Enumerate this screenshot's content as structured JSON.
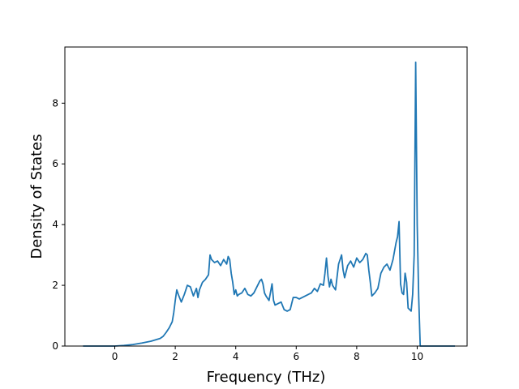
{
  "chart_data": {
    "type": "line",
    "title": "",
    "xlabel": "Frequency (THz)",
    "ylabel": "Density of States",
    "xlim": [
      -1.65,
      11.65
    ],
    "ylim": [
      0,
      9.85
    ],
    "xticks": [
      0,
      2,
      4,
      6,
      8,
      10
    ],
    "yticks": [
      0,
      2,
      4,
      6,
      8
    ],
    "x_tick_labels": [
      "0",
      "2",
      "4",
      "6",
      "8",
      "10"
    ],
    "y_tick_labels": [
      "0",
      "2",
      "4",
      "6",
      "8"
    ],
    "grid": false,
    "legend": "none",
    "series": [
      {
        "color": "#1f77b4",
        "x": [
          -1.05,
          -0.6,
          -0.3,
          0.0,
          0.3,
          0.6,
          0.9,
          1.2,
          1.5,
          1.6,
          1.7,
          1.8,
          1.9,
          1.95,
          2.0,
          2.05,
          2.1,
          2.2,
          2.3,
          2.4,
          2.5,
          2.6,
          2.7,
          2.75,
          2.8,
          2.9,
          3.0,
          3.1,
          3.15,
          3.2,
          3.3,
          3.4,
          3.5,
          3.6,
          3.7,
          3.75,
          3.8,
          3.85,
          3.9,
          3.95,
          4.0,
          4.05,
          4.1,
          4.2,
          4.3,
          4.4,
          4.5,
          4.6,
          4.7,
          4.8,
          4.85,
          4.9,
          4.95,
          5.0,
          5.1,
          5.2,
          5.25,
          5.3,
          5.4,
          5.5,
          5.6,
          5.7,
          5.8,
          5.9,
          6.0,
          6.1,
          6.2,
          6.3,
          6.4,
          6.5,
          6.6,
          6.7,
          6.8,
          6.9,
          6.95,
          7.0,
          7.05,
          7.1,
          7.15,
          7.2,
          7.3,
          7.4,
          7.5,
          7.55,
          7.6,
          7.7,
          7.8,
          7.9,
          8.0,
          8.1,
          8.2,
          8.3,
          8.35,
          8.4,
          8.45,
          8.5,
          8.6,
          8.7,
          8.8,
          8.9,
          9.0,
          9.1,
          9.2,
          9.3,
          9.35,
          9.4,
          9.45,
          9.5,
          9.55,
          9.6,
          9.65,
          9.7,
          9.75,
          9.8,
          9.85,
          9.9,
          9.95,
          10.0,
          10.05,
          10.1,
          10.15,
          10.2,
          10.25,
          10.5,
          10.8,
          11.1,
          11.25
        ],
        "y": [
          0.0,
          0.0,
          0.0,
          0.0,
          0.02,
          0.05,
          0.1,
          0.16,
          0.25,
          0.32,
          0.45,
          0.6,
          0.8,
          1.1,
          1.5,
          1.85,
          1.7,
          1.45,
          1.7,
          2.0,
          1.95,
          1.65,
          1.9,
          1.6,
          1.85,
          2.1,
          2.2,
          2.35,
          3.0,
          2.85,
          2.75,
          2.8,
          2.65,
          2.85,
          2.7,
          2.95,
          2.85,
          2.4,
          2.1,
          1.7,
          1.85,
          1.65,
          1.7,
          1.75,
          1.9,
          1.7,
          1.65,
          1.75,
          1.95,
          2.15,
          2.2,
          2.05,
          1.75,
          1.65,
          1.5,
          2.05,
          1.5,
          1.35,
          1.4,
          1.45,
          1.2,
          1.15,
          1.2,
          1.6,
          1.6,
          1.55,
          1.6,
          1.65,
          1.7,
          1.75,
          1.9,
          1.8,
          2.05,
          2.0,
          2.4,
          2.9,
          2.3,
          1.95,
          2.2,
          2.0,
          1.85,
          2.7,
          3.0,
          2.5,
          2.25,
          2.65,
          2.8,
          2.6,
          2.9,
          2.75,
          2.85,
          3.05,
          3.0,
          2.5,
          2.1,
          1.65,
          1.75,
          1.9,
          2.4,
          2.6,
          2.7,
          2.5,
          2.85,
          3.4,
          3.6,
          4.1,
          2.05,
          1.75,
          1.7,
          2.4,
          2.1,
          1.25,
          1.2,
          1.15,
          1.7,
          3.0,
          9.35,
          4.0,
          1.6,
          0.0,
          0.0,
          0.0,
          0.0,
          0.0,
          0.0,
          0.0,
          0.0
        ]
      }
    ]
  }
}
